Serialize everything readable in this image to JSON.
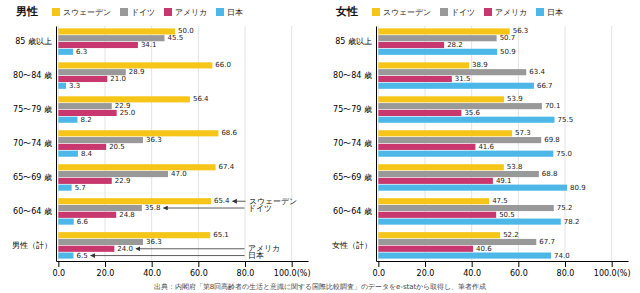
{
  "chart_data": [
    {
      "type": "bar",
      "orientation": "horizontal",
      "title": "男性",
      "categories": [
        "85 歳以上",
        "80〜84 歳",
        "75〜79 歳",
        "70〜74 歳",
        "65〜69 歳",
        "60〜64 歳",
        "男性（計）"
      ],
      "series": [
        {
          "name": "スウェーデン",
          "color": "#f5c518",
          "values": [
            50.0,
            66.0,
            56.4,
            68.6,
            67.4,
            65.4,
            65.1
          ],
          "value_labels": [
            "50.0",
            "66.0",
            "56.4",
            "68.6",
            "67.4",
            "65.4",
            "65.1"
          ]
        },
        {
          "name": "ドイツ",
          "color": "#999999",
          "values": [
            45.5,
            28.9,
            22.9,
            36.3,
            47.0,
            35.8,
            36.3
          ],
          "value_labels": [
            "45.5",
            "28.9",
            "22.9",
            "36.3",
            "47.0",
            "35.8",
            "36.3"
          ]
        },
        {
          "name": "アメリカ",
          "color": "#c8376e",
          "values": [
            34.1,
            21.0,
            25.0,
            20.5,
            22.9,
            24.8,
            24.0
          ],
          "value_labels": [
            "34.1",
            "21.0",
            "25.0",
            "20.5",
            "22.9",
            "24.8",
            "24.0"
          ]
        },
        {
          "name": "日本",
          "color": "#4db8e8",
          "values": [
            6.3,
            3.3,
            8.2,
            8.4,
            5.7,
            6.6,
            6.5
          ],
          "value_labels": [
            "6.3",
            "3.3",
            "8.2",
            "8.4",
            "5.7",
            "6.6",
            "6.5"
          ]
        }
      ],
      "xlim": [
        -1,
        107
      ],
      "xticks": [
        {
          "value": 0,
          "label": "0.0"
        },
        {
          "value": 20,
          "label": "20.0"
        },
        {
          "value": 40,
          "label": "40.0"
        },
        {
          "value": 60,
          "label": "60.0"
        },
        {
          "value": 80,
          "label": "80.0"
        },
        {
          "value": 100,
          "label": "100.0(%)"
        }
      ],
      "grid": true,
      "legend": "top",
      "data_labels": true,
      "annotations": [
        {
          "text": "スウェーデン",
          "category": "60〜64 歳",
          "series": "スウェーデン"
        },
        {
          "text": "ドイツ",
          "category": "60〜64 歳",
          "series": "ドイツ"
        },
        {
          "text": "アメリカ",
          "category": "男性（計）",
          "series": "アメリカ"
        },
        {
          "text": "日本",
          "category": "男性（計）",
          "series": "日本"
        }
      ]
    },
    {
      "type": "bar",
      "orientation": "horizontal",
      "title": "女性",
      "categories": [
        "85 歳以上",
        "80〜84 歳",
        "75〜79 歳",
        "70〜74 歳",
        "65〜69 歳",
        "60〜64 歳",
        "女性（計）"
      ],
      "series": [
        {
          "name": "スウェーデン",
          "color": "#f5c518",
          "values": [
            56.3,
            38.9,
            53.9,
            57.3,
            53.8,
            47.5,
            52.2
          ],
          "value_labels": [
            "56.3",
            "38.9",
            "53.9",
            "57.3",
            "53.8",
            "47.5",
            "52.2"
          ]
        },
        {
          "name": "ドイツ",
          "color": "#999999",
          "values": [
            50.7,
            63.4,
            70.1,
            69.8,
            68.8,
            75.2,
            67.7
          ],
          "value_labels": [
            "50.7",
            "63.4",
            "70.1",
            "69.8",
            "68.8",
            "75.2",
            "67.7"
          ]
        },
        {
          "name": "アメリカ",
          "color": "#c8376e",
          "values": [
            28.2,
            31.5,
            35.6,
            41.6,
            49.1,
            50.5,
            40.6
          ],
          "value_labels": [
            "28.2",
            "31.5",
            "35.6",
            "41.6",
            "49.1",
            "50.5",
            "40.6"
          ]
        },
        {
          "name": "日本",
          "color": "#4db8e8",
          "values": [
            50.9,
            66.7,
            75.5,
            75.0,
            80.9,
            78.2,
            74.0
          ],
          "value_labels": [
            "50.9",
            "66.7",
            "75.5",
            "75.0",
            "80.9",
            "78.2",
            "74.0"
          ]
        }
      ],
      "xlim": [
        -1,
        107
      ],
      "xticks": [
        {
          "value": 0,
          "label": "0.0"
        },
        {
          "value": 20,
          "label": "20.0"
        },
        {
          "value": 40,
          "label": "40.0"
        },
        {
          "value": 60,
          "label": "60.0"
        },
        {
          "value": 80,
          "label": "80.0"
        },
        {
          "value": 100,
          "label": "100.0(%)"
        }
      ],
      "grid": true,
      "legend": "top",
      "data_labels": true
    }
  ],
  "source": "出典：内閣府「第8回高齢者の生活と意識に関する国際比較調査」のデータをe-statから取得し、筆者作成"
}
